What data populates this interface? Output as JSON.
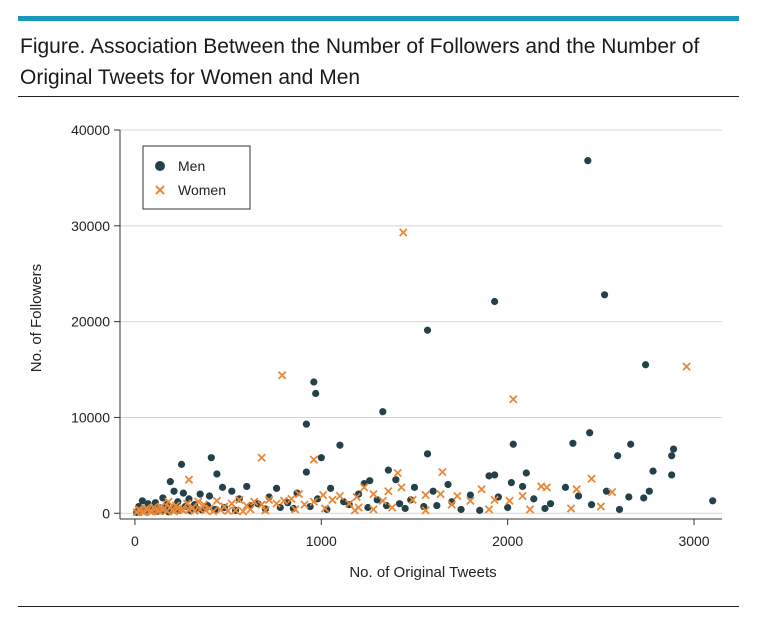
{
  "figure": {
    "title": "Figure. Association Between the Number of Followers and the Number of Original Tweets for Women and Men",
    "accent_color": "#1a98ba"
  },
  "chart_data": {
    "type": "scatter",
    "title": "",
    "xlabel": "No. of Original Tweets",
    "ylabel": "No. of Followers",
    "xlim": [
      -80,
      3150
    ],
    "ylim": [
      -600,
      40000
    ],
    "xticks": [
      0,
      1000,
      2000,
      3000
    ],
    "xtick_labels": [
      "0",
      "1000",
      "2000",
      "3000"
    ],
    "yticks": [
      0,
      10000,
      20000,
      30000,
      40000
    ],
    "ytick_labels": [
      "0",
      "10000",
      "20000",
      "30000",
      "40000"
    ],
    "grid": "horizontal",
    "legend": {
      "position": "top-left",
      "entries": [
        "Men",
        "Women"
      ]
    },
    "series": [
      {
        "name": "Men",
        "marker": "circle",
        "color": "#24414a",
        "points": [
          [
            2430,
            36800
          ],
          [
            1930,
            22100
          ],
          [
            2520,
            22800
          ],
          [
            1570,
            19100
          ],
          [
            2740,
            15500
          ],
          [
            960,
            13700
          ],
          [
            970,
            12500
          ],
          [
            1330,
            10600
          ],
          [
            920,
            9300
          ],
          [
            2440,
            8400
          ],
          [
            1100,
            7100
          ],
          [
            2660,
            7200
          ],
          [
            2030,
            7200
          ],
          [
            2350,
            7300
          ],
          [
            2890,
            6700
          ],
          [
            2880,
            6000
          ],
          [
            1570,
            6200
          ],
          [
            1000,
            5800
          ],
          [
            410,
            5800
          ],
          [
            250,
            5100
          ],
          [
            2590,
            6000
          ],
          [
            2780,
            4400
          ],
          [
            2880,
            4000
          ],
          [
            1360,
            4500
          ],
          [
            1400,
            3500
          ],
          [
            1900,
            3900
          ],
          [
            2100,
            4200
          ],
          [
            1680,
            3000
          ],
          [
            2020,
            3200
          ],
          [
            2530,
            2300
          ],
          [
            2760,
            2300
          ],
          [
            2730,
            1600
          ],
          [
            3100,
            1300
          ],
          [
            2380,
            1800
          ],
          [
            2230,
            1000
          ],
          [
            2140,
            1500
          ],
          [
            2080,
            2800
          ],
          [
            1950,
            1700
          ],
          [
            1800,
            1900
          ],
          [
            1700,
            1200
          ],
          [
            1620,
            800
          ],
          [
            1480,
            1400
          ],
          [
            1420,
            1000
          ],
          [
            1300,
            1400
          ],
          [
            1260,
            3400
          ],
          [
            1200,
            2000
          ],
          [
            1120,
            1200
          ],
          [
            1050,
            2600
          ],
          [
            980,
            1500
          ],
          [
            920,
            4300
          ],
          [
            870,
            2100
          ],
          [
            820,
            1100
          ],
          [
            760,
            2600
          ],
          [
            720,
            1700
          ],
          [
            660,
            1000
          ],
          [
            600,
            2800
          ],
          [
            560,
            1500
          ],
          [
            520,
            2300
          ],
          [
            470,
            2700
          ],
          [
            440,
            4100
          ],
          [
            400,
            1800
          ],
          [
            350,
            2000
          ],
          [
            320,
            900
          ],
          [
            290,
            1500
          ],
          [
            260,
            2100
          ],
          [
            230,
            1200
          ],
          [
            210,
            2300
          ],
          [
            190,
            3300
          ],
          [
            170,
            900
          ],
          [
            150,
            1600
          ],
          [
            130,
            600
          ],
          [
            110,
            1100
          ],
          [
            90,
            500
          ],
          [
            70,
            1000
          ],
          [
            50,
            400
          ],
          [
            40,
            1300
          ],
          [
            30,
            200
          ],
          [
            20,
            700
          ],
          [
            10,
            100
          ],
          [
            60,
            200
          ],
          [
            80,
            300
          ],
          [
            100,
            400
          ],
          [
            120,
            200
          ],
          [
            140,
            300
          ],
          [
            160,
            500
          ],
          [
            180,
            150
          ],
          [
            200,
            400
          ],
          [
            220,
            600
          ],
          [
            240,
            300
          ],
          [
            270,
            700
          ],
          [
            300,
            250
          ],
          [
            330,
            500
          ],
          [
            360,
            350
          ],
          [
            390,
            800
          ],
          [
            430,
            400
          ],
          [
            480,
            600
          ],
          [
            540,
            300
          ],
          [
            620,
            800
          ],
          [
            700,
            450
          ],
          [
            780,
            600
          ],
          [
            850,
            500
          ],
          [
            940,
            700
          ],
          [
            1030,
            400
          ],
          [
            1150,
            900
          ],
          [
            1250,
            600
          ],
          [
            1350,
            800
          ],
          [
            1450,
            500
          ],
          [
            1550,
            700
          ],
          [
            1750,
            400
          ],
          [
            1850,
            300
          ],
          [
            2000,
            600
          ],
          [
            2200,
            500
          ],
          [
            2450,
            900
          ],
          [
            2600,
            400
          ],
          [
            1600,
            2300
          ],
          [
            1230,
            3100
          ],
          [
            1500,
            2700
          ],
          [
            2310,
            2700
          ],
          [
            2650,
            1700
          ],
          [
            1930,
            4000
          ]
        ]
      },
      {
        "name": "Women",
        "marker": "x",
        "color": "#e8893a",
        "points": [
          [
            1440,
            29300
          ],
          [
            2960,
            15300
          ],
          [
            790,
            14400
          ],
          [
            2030,
            11900
          ],
          [
            960,
            5600
          ],
          [
            680,
            5800
          ],
          [
            1410,
            4200
          ],
          [
            1650,
            4300
          ],
          [
            290,
            3500
          ],
          [
            2450,
            3600
          ],
          [
            2560,
            2200
          ],
          [
            2180,
            2800
          ],
          [
            2210,
            2700
          ],
          [
            2370,
            2500
          ],
          [
            2340,
            500
          ],
          [
            2080,
            1800
          ],
          [
            2010,
            1300
          ],
          [
            1930,
            1400
          ],
          [
            1860,
            2500
          ],
          [
            1800,
            1300
          ],
          [
            1730,
            1800
          ],
          [
            1640,
            2000
          ],
          [
            1560,
            1900
          ],
          [
            1490,
            1400
          ],
          [
            1430,
            2700
          ],
          [
            1360,
            2300
          ],
          [
            1330,
            1300
          ],
          [
            1280,
            2000
          ],
          [
            1230,
            2700
          ],
          [
            1190,
            1700
          ],
          [
            1150,
            1000
          ],
          [
            1100,
            1800
          ],
          [
            1060,
            1400
          ],
          [
            1010,
            1900
          ],
          [
            960,
            1200
          ],
          [
            910,
            900
          ],
          [
            880,
            2000
          ],
          [
            840,
            1500
          ],
          [
            800,
            1300
          ],
          [
            760,
            1000
          ],
          [
            720,
            1400
          ],
          [
            680,
            900
          ],
          [
            640,
            1200
          ],
          [
            600,
            800
          ],
          [
            560,
            1400
          ],
          [
            520,
            1000
          ],
          [
            480,
            700
          ],
          [
            440,
            1300
          ],
          [
            400,
            500
          ],
          [
            370,
            900
          ],
          [
            340,
            1200
          ],
          [
            310,
            600
          ],
          [
            280,
            1000
          ],
          [
            250,
            400
          ],
          [
            220,
            800
          ],
          [
            200,
            300
          ],
          [
            180,
            1200
          ],
          [
            160,
            500
          ],
          [
            140,
            700
          ],
          [
            120,
            300
          ],
          [
            100,
            600
          ],
          [
            80,
            200
          ],
          [
            60,
            500
          ],
          [
            40,
            150
          ],
          [
            20,
            400
          ],
          [
            10,
            100
          ],
          [
            30,
            300
          ],
          [
            50,
            100
          ],
          [
            70,
            400
          ],
          [
            90,
            150
          ],
          [
            110,
            450
          ],
          [
            130,
            200
          ],
          [
            150,
            350
          ],
          [
            170,
            250
          ],
          [
            190,
            600
          ],
          [
            210,
            200
          ],
          [
            230,
            450
          ],
          [
            260,
            300
          ],
          [
            290,
            350
          ],
          [
            320,
            250
          ],
          [
            350,
            400
          ],
          [
            380,
            300
          ],
          [
            420,
            200
          ],
          [
            460,
            350
          ],
          [
            500,
            250
          ],
          [
            540,
            300
          ],
          [
            580,
            200
          ],
          [
            620,
            400
          ],
          [
            700,
            300
          ],
          [
            860,
            400
          ],
          [
            1020,
            500
          ],
          [
            1200,
            600
          ],
          [
            1280,
            400
          ],
          [
            1560,
            300
          ],
          [
            1900,
            400
          ],
          [
            2500,
            700
          ],
          [
            1700,
            900
          ],
          [
            2120,
            400
          ],
          [
            1380,
            600
          ],
          [
            1180,
            300
          ]
        ]
      }
    ]
  }
}
